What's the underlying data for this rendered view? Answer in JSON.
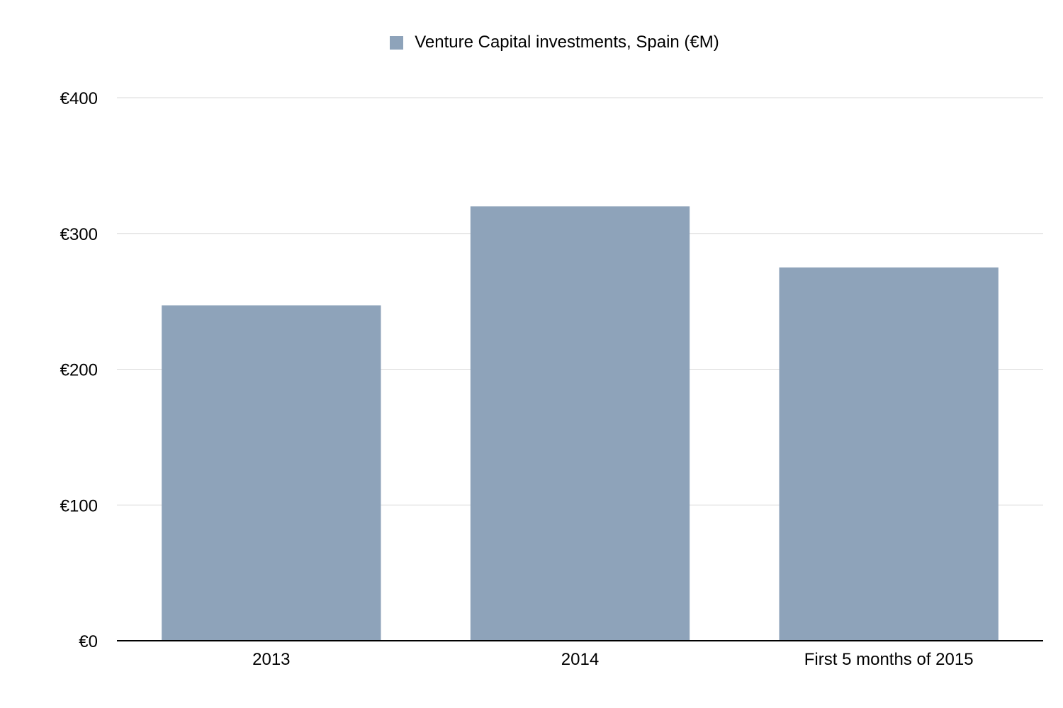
{
  "chart_data": {
    "type": "bar",
    "categories": [
      "2013",
      "2014",
      "First 5 months of 2015"
    ],
    "series": [
      {
        "name": "Venture Capital investments, Spain (€M)",
        "values": [
          247,
          320,
          275
        ]
      }
    ],
    "ylim": [
      0,
      400
    ],
    "yticks": [
      0,
      100,
      200,
      300,
      400
    ],
    "ytick_labels": [
      "€0",
      "€100",
      "€200",
      "€300",
      "€400"
    ],
    "grid": true,
    "legend": "top-center",
    "colors": {
      "bar": "#8ea3ba",
      "grid": "#d9d9d9",
      "axis": "#000000"
    }
  }
}
